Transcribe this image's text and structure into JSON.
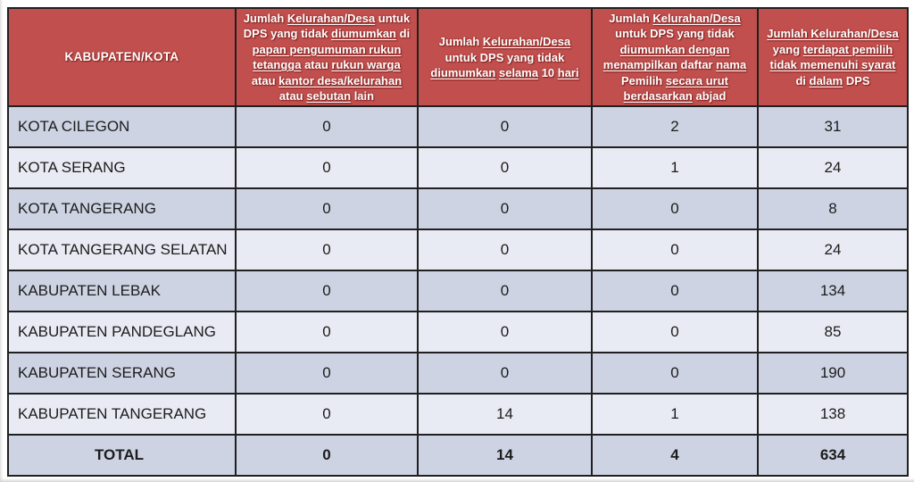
{
  "colors": {
    "header-bg": "#C04F4D",
    "header-text": "#FFFFFF",
    "band-dark": "#CDD3E3",
    "band-light": "#E9EBF4",
    "border": "#202020",
    "body-text": "#1C1C1C"
  },
  "table": {
    "headers": [
      {
        "text": "KABUPATEN/KOTA"
      },
      {
        "segments": [
          {
            "t": "Jumlah ",
            "u": false
          },
          {
            "t": "Kelurahan/Desa",
            "u": true
          },
          {
            "t": " untuk DPS yang tidak ",
            "u": false
          },
          {
            "t": "diumumkan",
            "u": true
          },
          {
            "t": " di ",
            "u": false
          },
          {
            "t": "papan pengumuman rukun",
            "u": true
          },
          {
            "t": " ",
            "u": false
          },
          {
            "t": "tetangga",
            "u": true
          },
          {
            "t": " atau ",
            "u": false
          },
          {
            "t": "rukun warga",
            "u": true
          },
          {
            "t": " atau ",
            "u": false
          },
          {
            "t": "kantor desa/kelurahan",
            "u": true
          },
          {
            "t": " atau ",
            "u": false
          },
          {
            "t": "sebutan",
            "u": true
          },
          {
            "t": " lain",
            "u": false
          }
        ]
      },
      {
        "segments": [
          {
            "t": "Jumlah ",
            "u": false
          },
          {
            "t": "Kelurahan/Desa",
            "u": true
          },
          {
            "t": " untuk DPS yang tidak ",
            "u": false
          },
          {
            "t": "diumumkan",
            "u": true
          },
          {
            "t": " ",
            "u": false
          },
          {
            "t": "selama",
            "u": true
          },
          {
            "t": " 10 ",
            "u": false
          },
          {
            "t": "hari",
            "u": true
          }
        ]
      },
      {
        "segments": [
          {
            "t": "Jumlah ",
            "u": false
          },
          {
            "t": "Kelurahan/Desa",
            "u": true
          },
          {
            "t": " untuk DPS yang tidak ",
            "u": false
          },
          {
            "t": "diumumkan dengan",
            "u": true
          },
          {
            "t": " ",
            "u": false
          },
          {
            "t": "menampilkan",
            "u": true
          },
          {
            "t": " daftar ",
            "u": false
          },
          {
            "t": "nama",
            "u": true
          },
          {
            "t": " Pemilih ",
            "u": false
          },
          {
            "t": "secara urut",
            "u": true
          },
          {
            "t": " ",
            "u": false
          },
          {
            "t": "berdasarkan",
            "u": true
          },
          {
            "t": " abjad",
            "u": false
          }
        ]
      },
      {
        "segments": [
          {
            "t": "Jumlah Kelurahan/Desa",
            "u": true
          },
          {
            "t": " yang ",
            "u": false
          },
          {
            "t": "terdapat pemilih",
            "u": true
          },
          {
            "t": " ",
            "u": false
          },
          {
            "t": "tidak memenuhi syarat",
            "u": true
          },
          {
            "t": " di ",
            "u": false
          },
          {
            "t": "dalam",
            "u": true
          },
          {
            "t": " DPS",
            "u": false
          }
        ]
      }
    ],
    "rows": [
      {
        "name": "KOTA CILEGON",
        "values": [
          "0",
          "0",
          "2",
          "31"
        ]
      },
      {
        "name": "KOTA SERANG",
        "values": [
          "0",
          "0",
          "1",
          "24"
        ]
      },
      {
        "name": "KOTA TANGERANG",
        "values": [
          "0",
          "0",
          "0",
          "8"
        ]
      },
      {
        "name": "KOTA TANGERANG SELATAN",
        "values": [
          "0",
          "0",
          "0",
          "24"
        ]
      },
      {
        "name": "KABUPATEN LEBAK",
        "values": [
          "0",
          "0",
          "0",
          "134"
        ]
      },
      {
        "name": "KABUPATEN PANDEGLANG",
        "values": [
          "0",
          "0",
          "0",
          "85"
        ]
      },
      {
        "name": "KABUPATEN SERANG",
        "values": [
          "0",
          "0",
          "0",
          "190"
        ]
      },
      {
        "name": "KABUPATEN TANGERANG",
        "values": [
          "0",
          "14",
          "1",
          "138"
        ]
      }
    ],
    "total": {
      "label": "TOTAL",
      "values": [
        "0",
        "14",
        "4",
        "634"
      ]
    }
  }
}
